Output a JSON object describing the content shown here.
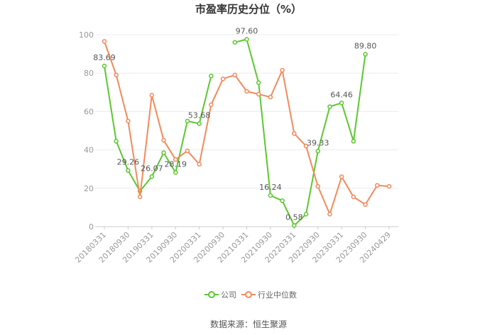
{
  "chart_data": {
    "type": "line",
    "title": "市盈率历史分位（%）",
    "xlabel": "",
    "ylabel": "",
    "ylim": [
      0,
      100
    ],
    "yticks": [
      0,
      20,
      40,
      60,
      80,
      100
    ],
    "grid": true,
    "legend_position": "bottom",
    "x": [
      "20180331",
      "20180630",
      "20180930",
      "20181231",
      "20190331",
      "20190630",
      "20190930",
      "20191231",
      "20200331",
      "20200630",
      "20200930",
      "20201231",
      "20210331",
      "20210630",
      "20210930",
      "20211231",
      "20220331",
      "20220630",
      "20220930",
      "20221231",
      "20230331",
      "20230630",
      "20230930",
      "20231231",
      "20240429"
    ],
    "x_tick_labels": [
      "20180331",
      "20180930",
      "20190331",
      "20190930",
      "20200331",
      "20200930",
      "20210331",
      "20210930",
      "20220331",
      "20220930",
      "20230331",
      "20230930",
      "20240429"
    ],
    "series": [
      {
        "name": "公司",
        "color": "#5cc72f",
        "values": [
          83.69,
          44.5,
          29.26,
          18.5,
          26.07,
          38.5,
          28.19,
          55.0,
          53.68,
          78.5,
          null,
          96.0,
          97.6,
          75.0,
          16.24,
          13.5,
          0.58,
          6.5,
          39.33,
          62.5,
          64.46,
          44.5,
          89.8,
          null,
          null
        ],
        "data_labels": {
          "0": "83.69",
          "2": "29.26",
          "4": "26.07",
          "6": "28.19",
          "8": "53.68",
          "12": "97.60",
          "14": "16.24",
          "16": "0.58",
          "18": "39.33",
          "20": "64.46",
          "22": "89.80"
        }
      },
      {
        "name": "行业中位数",
        "color": "#f28a5c",
        "values": [
          96.5,
          79.0,
          55.0,
          15.5,
          68.5,
          45.0,
          35.0,
          39.5,
          32.5,
          63.5,
          77.0,
          79.0,
          70.5,
          69.0,
          67.5,
          81.5,
          48.5,
          42.0,
          21.0,
          6.5,
          26.0,
          15.5,
          11.5,
          21.5,
          21.0
        ]
      }
    ]
  },
  "footer": {
    "source": "数据来源：恒生聚源"
  }
}
